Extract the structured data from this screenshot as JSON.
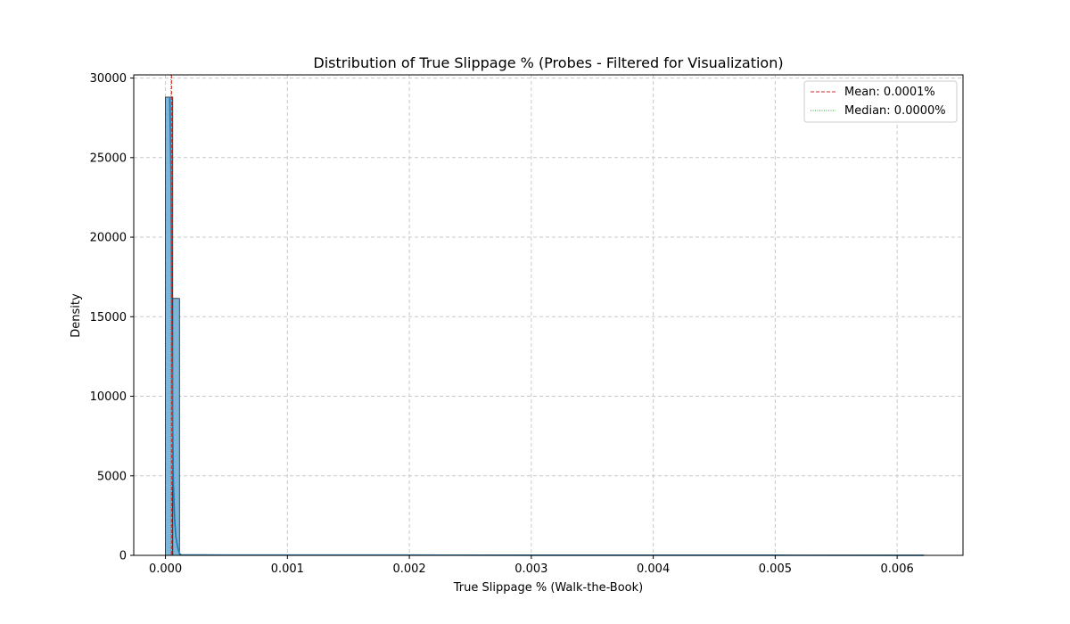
{
  "chart_data": {
    "type": "histogram",
    "title": "Distribution of True Slippage % (Probes - Filtered for Visualization)",
    "xlabel": "True Slippage % (Walk-the-Book)",
    "ylabel": "Density",
    "xlim": [
      -0.00026,
      0.00654
    ],
    "ylim": [
      0,
      30200
    ],
    "x_ticks": [
      0.0,
      0.001,
      0.002,
      0.003,
      0.004,
      0.005,
      0.006
    ],
    "x_tick_labels": [
      "0.000",
      "0.001",
      "0.002",
      "0.003",
      "0.004",
      "0.005",
      "0.006"
    ],
    "y_ticks": [
      0,
      5000,
      10000,
      15000,
      20000,
      25000,
      30000
    ],
    "y_tick_labels": [
      "0",
      "5000",
      "10000",
      "15000",
      "20000",
      "25000",
      "30000"
    ],
    "grid": true,
    "legend_position": "top-right",
    "bins": [
      {
        "x0": 0.0,
        "x1": 6e-05,
        "value": 28800
      },
      {
        "x0": 6e-05,
        "x1": 0.000115,
        "value": 16150
      }
    ],
    "kde": {
      "x": [
        3.5e-05,
        4.5e-05,
        5.2e-05,
        5.8e-05,
        6.5e-05,
        7.5e-05,
        8.5e-05,
        0.0001,
        0.000115,
        0.00013,
        0.0005,
        0.001,
        0.002,
        0.003,
        0.004,
        0.005,
        0.006,
        0.00622
      ],
      "y": [
        28800,
        24000,
        16000,
        9000,
        4500,
        2300,
        1200,
        500,
        120,
        30,
        20,
        20,
        15,
        12,
        10,
        8,
        6,
        5
      ]
    },
    "reference_lines": [
      {
        "label": "Mean: 0.0001%",
        "x": 5e-05,
        "color": "#d62728",
        "style": "dashed"
      },
      {
        "label": "Median: 0.0000%",
        "x": 4.5e-05,
        "color": "#2ca02c",
        "style": "dotted"
      }
    ],
    "colors": {
      "bar_fill": "#7fb5d8",
      "bar_edge": "#1a1a1a",
      "kde_line": "#1f77b4",
      "grid": "#c8c8c8"
    }
  }
}
